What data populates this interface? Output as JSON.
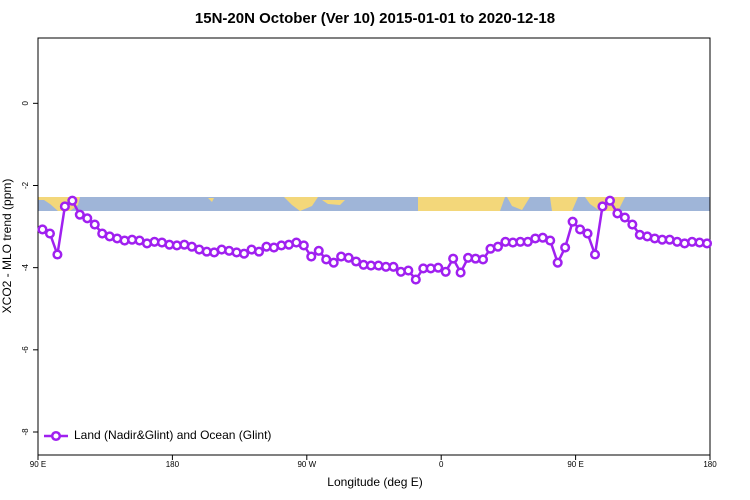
{
  "chart_data": {
    "type": "line",
    "title": "15N-20N October (Ver 10)   2015-01-01 to 2020-12-18",
    "x_label": "Longitude (deg E)",
    "y_label": "XCO2 - MLO trend (ppm)",
    "xlim": [
      90,
      540
    ],
    "ylim": [
      -8.56,
      1.59
    ],
    "xticks": [
      {
        "value": 90,
        "label": "90 E"
      },
      180,
      {
        "value": 270,
        "label": "90 W"
      },
      {
        "value": 360,
        "label": "0"
      },
      {
        "value": 450,
        "label": "90 E"
      },
      {
        "value": 540,
        "label": "180"
      }
    ],
    "yticks": [
      -8,
      -6,
      -4,
      -2,
      0
    ],
    "legend": "bottom-left",
    "x": [
      93,
      98,
      103,
      108,
      113,
      118,
      123,
      128,
      133,
      138,
      143,
      148,
      153,
      158,
      163,
      168,
      173,
      178,
      183,
      188,
      193,
      198,
      203,
      208,
      213,
      218,
      223,
      228,
      233,
      238,
      243,
      248,
      253,
      258,
      263,
      268,
      273,
      278,
      283,
      288,
      293,
      298,
      303,
      308,
      313,
      318,
      323,
      328,
      333,
      338,
      343,
      348,
      353,
      358,
      363,
      368,
      373,
      378,
      383,
      388,
      393,
      398,
      403,
      408,
      413,
      418,
      423,
      428,
      433,
      438,
      443,
      448,
      453,
      458,
      463,
      468,
      473,
      478,
      483,
      488,
      493,
      498,
      503,
      508,
      513,
      518,
      523,
      528,
      533,
      538
    ],
    "series": [
      {
        "name": "Land (Nadir&Glint) and Ocean (Glint)",
        "color": "#a020f0",
        "values": [
          -3.07,
          -3.17,
          -3.68,
          -2.51,
          -2.37,
          -2.71,
          -2.8,
          -2.95,
          -3.17,
          -3.24,
          -3.29,
          -3.34,
          -3.32,
          -3.34,
          -3.41,
          -3.37,
          -3.39,
          -3.44,
          -3.46,
          -3.44,
          -3.49,
          -3.56,
          -3.61,
          -3.63,
          -3.56,
          -3.59,
          -3.63,
          -3.66,
          -3.56,
          -3.61,
          -3.49,
          -3.51,
          -3.46,
          -3.44,
          -3.39,
          -3.46,
          -3.73,
          -3.59,
          -3.8,
          -3.88,
          -3.73,
          -3.76,
          -3.85,
          -3.93,
          -3.95,
          -3.95,
          -3.98,
          -3.98,
          -4.1,
          -4.07,
          -4.29,
          -4.02,
          -4.02,
          -4.0,
          -4.1,
          -3.78,
          -4.12,
          -3.76,
          -3.78,
          -3.8,
          -3.54,
          -3.49,
          -3.37,
          -3.39,
          -3.37,
          -3.37,
          -3.29,
          -3.27,
          -3.34,
          -3.88,
          -3.51,
          -2.88,
          -3.07,
          -3.17,
          -3.68,
          -2.51,
          -2.37,
          -2.68,
          -2.78,
          -2.95,
          -3.2,
          -3.24,
          -3.29,
          -3.32,
          -3.32,
          -3.37,
          -3.41,
          -3.37,
          -3.39,
          -3.41
        ]
      }
    ]
  }
}
